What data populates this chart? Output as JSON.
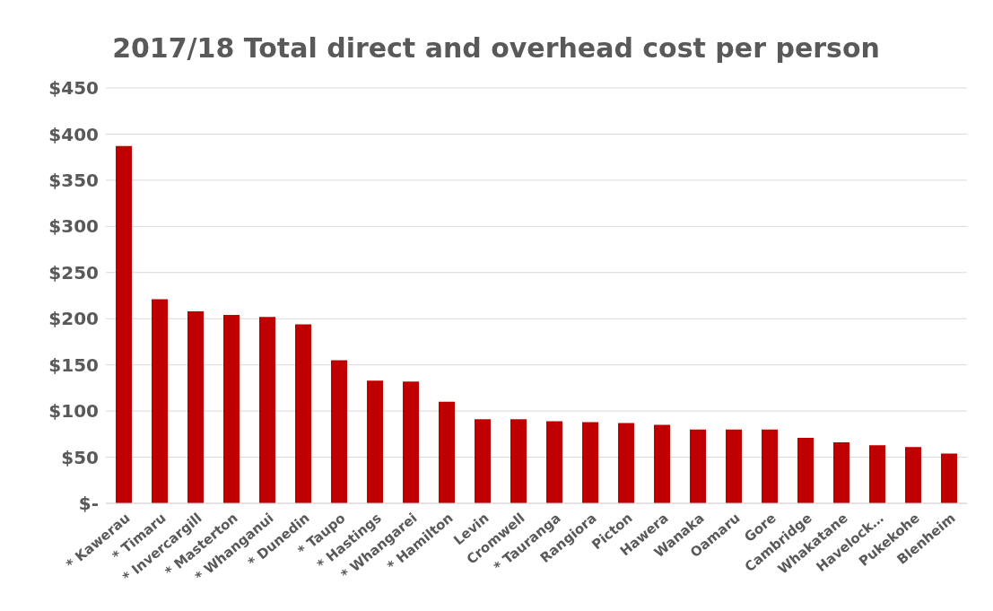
{
  "chart_data": {
    "type": "bar",
    "title": "2017/18 Total direct and overhead cost per person",
    "categories": [
      "* Kawerau",
      "* Timaru",
      "* Invercargill",
      "* Masterton",
      "* Whanganui",
      "* Dunedin",
      "* Taupo",
      "* Hastings",
      "* Whangarei",
      "* Hamilton",
      "Levin",
      "Cromwell",
      "* Tauranga",
      "Rangiora",
      "Picton",
      "Hawera",
      "Wanaka",
      "Oamaru",
      "Gore",
      "Cambridge",
      "Whakatane",
      "Havelock…",
      "Pukekohe",
      "Blenheim"
    ],
    "values": [
      387,
      221,
      208,
      204,
      202,
      194,
      155,
      133,
      132,
      110,
      91,
      91,
      89,
      88,
      87,
      85,
      80,
      80,
      80,
      71,
      66,
      63,
      61,
      54
    ],
    "color": "#c00000",
    "ylim": [
      0,
      450
    ],
    "yticks": [
      {
        "value": 0,
        "label": "$-"
      },
      {
        "value": 50,
        "label": "$50"
      },
      {
        "value": 100,
        "label": "$100"
      },
      {
        "value": 150,
        "label": "$150"
      },
      {
        "value": 200,
        "label": "$200"
      },
      {
        "value": 250,
        "label": "$250"
      },
      {
        "value": 300,
        "label": "$300"
      },
      {
        "value": 350,
        "label": "$350"
      },
      {
        "value": 400,
        "label": "$400"
      },
      {
        "value": 450,
        "label": "$450"
      }
    ],
    "grid": "y"
  }
}
